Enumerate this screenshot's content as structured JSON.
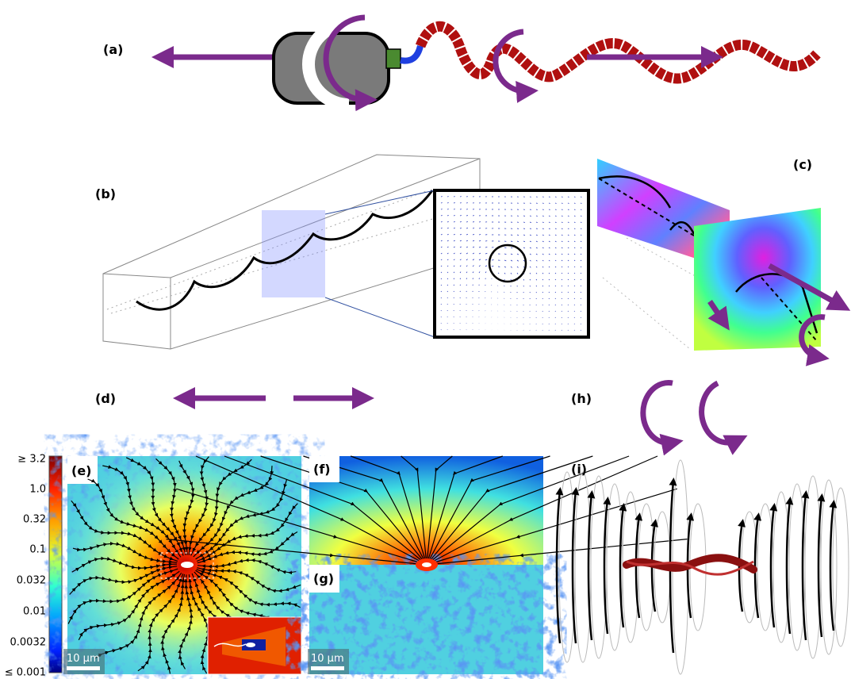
{
  "panels": {
    "a": "(a)",
    "b": "(b)",
    "c": "(c)",
    "d": "(d)",
    "e": "(e)",
    "f": "(f)",
    "g": "(g)",
    "h": "(h)",
    "i": "(i)"
  },
  "colorbar": {
    "labels": [
      "≥ 3.2",
      "1.0",
      "0.32",
      "0.1",
      "0.032",
      "0.01",
      "0.0032",
      "≤ 0.001"
    ]
  },
  "scale_bars": [
    "10 μm",
    "10 μm"
  ]
}
